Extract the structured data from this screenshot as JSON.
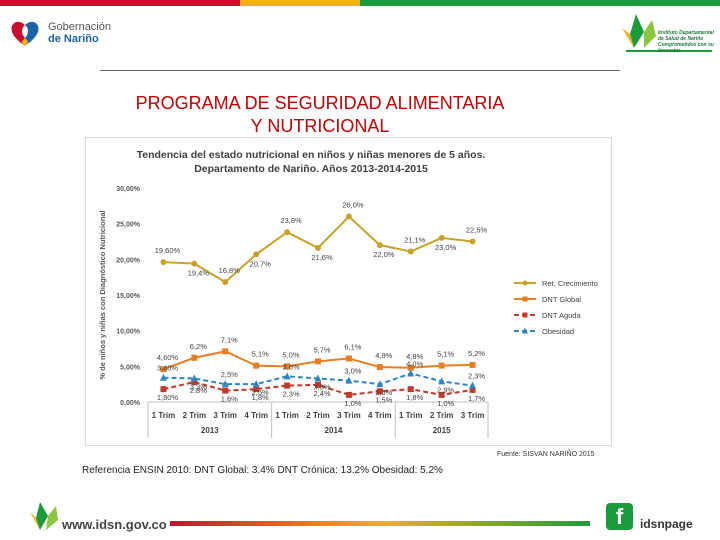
{
  "header": {
    "gobernacion_line1": "Gobernación",
    "gobernacion_line2": "de Nariño",
    "institute_text": "Instituto Departamental de Salud de Nariño",
    "institute_slogan": "Comprometidos con su bienestar"
  },
  "title_line1": "PROGRAMA DE SEGURIDAD ALIMENTARIA",
  "title_line2": "Y NUTRICIONAL",
  "source": "Fuente: SISVAN NARIÑO 2015",
  "reference": "Referencia ENSIN 2010: DNT Global: 3.4%   DNT Crónica:  13.2%   Obesidad: 5.2%",
  "footer": {
    "website": "www.idsn.gov.co",
    "facebook_label": "idsnpage"
  },
  "colors": {
    "red": "#c8102e",
    "yellow": "#f2b01e",
    "green": "#1c9b3c",
    "title": "#c00000"
  },
  "chart_data": {
    "type": "line",
    "title_line1": "Tendencia del estado nutricional en niños y niñas menores de 5 años.",
    "title_line2": "Departamento de Nariño. Años 2013-2014-2015",
    "ylabel": "% de niños y niñas con Diagnóstico Nutricional",
    "ylim": [
      0,
      30
    ],
    "yticks": [
      "0,00%",
      "5,00%",
      "10,00%",
      "15,00%",
      "20,00%",
      "25,00%",
      "30,00%"
    ],
    "categories": [
      "1 Trim",
      "2 Trim",
      "3 Trim",
      "4 Trim",
      "1 Trim",
      "2 Trim",
      "3 Trim",
      "4 Trim",
      "1 Trim",
      "2 Trim",
      "3 Trim"
    ],
    "year_groups": [
      {
        "label": "2013",
        "span": [
          0,
          3
        ]
      },
      {
        "label": "2014",
        "span": [
          4,
          7
        ]
      },
      {
        "label": "2015",
        "span": [
          8,
          10
        ]
      }
    ],
    "legend_position": "right",
    "series": [
      {
        "name": "Ret. Crecimiento",
        "color": "#c9a227",
        "marker": "circle",
        "dash": "",
        "values": [
          19.6,
          19.4,
          16.8,
          20.7,
          23.8,
          21.6,
          26.0,
          22.0,
          21.1,
          23.0,
          22.5
        ],
        "labels": [
          "19,60%",
          "19,4%",
          "16,8%",
          "20,7%",
          "23,8%",
          "21,6%",
          "26,0%",
          "22,0%",
          "21,1%",
          "23,0%",
          "22,5%"
        ]
      },
      {
        "name": "DNT Global",
        "color": "#e67e22",
        "marker": "square",
        "dash": "",
        "values": [
          4.6,
          6.2,
          7.1,
          5.1,
          5.0,
          5.7,
          6.1,
          4.9,
          4.8,
          5.1,
          5.2
        ],
        "labels": [
          "4,60%",
          "6,2%",
          "7,1%",
          "5,1%",
          "5,0%",
          "5,7%",
          "6,1%",
          "4,9%",
          "4,8%",
          "5,1%",
          "5,2%"
        ]
      },
      {
        "name": "DNT Aguda",
        "color": "#c0392b",
        "marker": "square",
        "dash": "5,3",
        "values": [
          1.8,
          2.8,
          1.6,
          1.8,
          2.3,
          2.4,
          1.0,
          1.5,
          1.8,
          1.0,
          1.7
        ],
        "labels": [
          "1,80%",
          "2,8%",
          "1,6%",
          "1,8%",
          "2,3%",
          "2,4%",
          "1,0%",
          "1,5%",
          "1,8%",
          "1,0%",
          "1,7%"
        ]
      },
      {
        "name": "Obesidad",
        "color": "#2e86c1",
        "marker": "triangle",
        "dash": "5,3",
        "values": [
          3.4,
          3.3,
          2.5,
          2.5,
          3.6,
          3.3,
          3.0,
          2.5,
          4.0,
          2.9,
          2.3
        ],
        "labels": [
          "3,40%",
          "3,3%",
          "2,5%",
          "2,5%",
          "3,6%",
          "3,3%",
          "3,0%",
          "2,5%",
          "4,0%",
          "2,9%",
          "2,3%"
        ]
      }
    ]
  }
}
